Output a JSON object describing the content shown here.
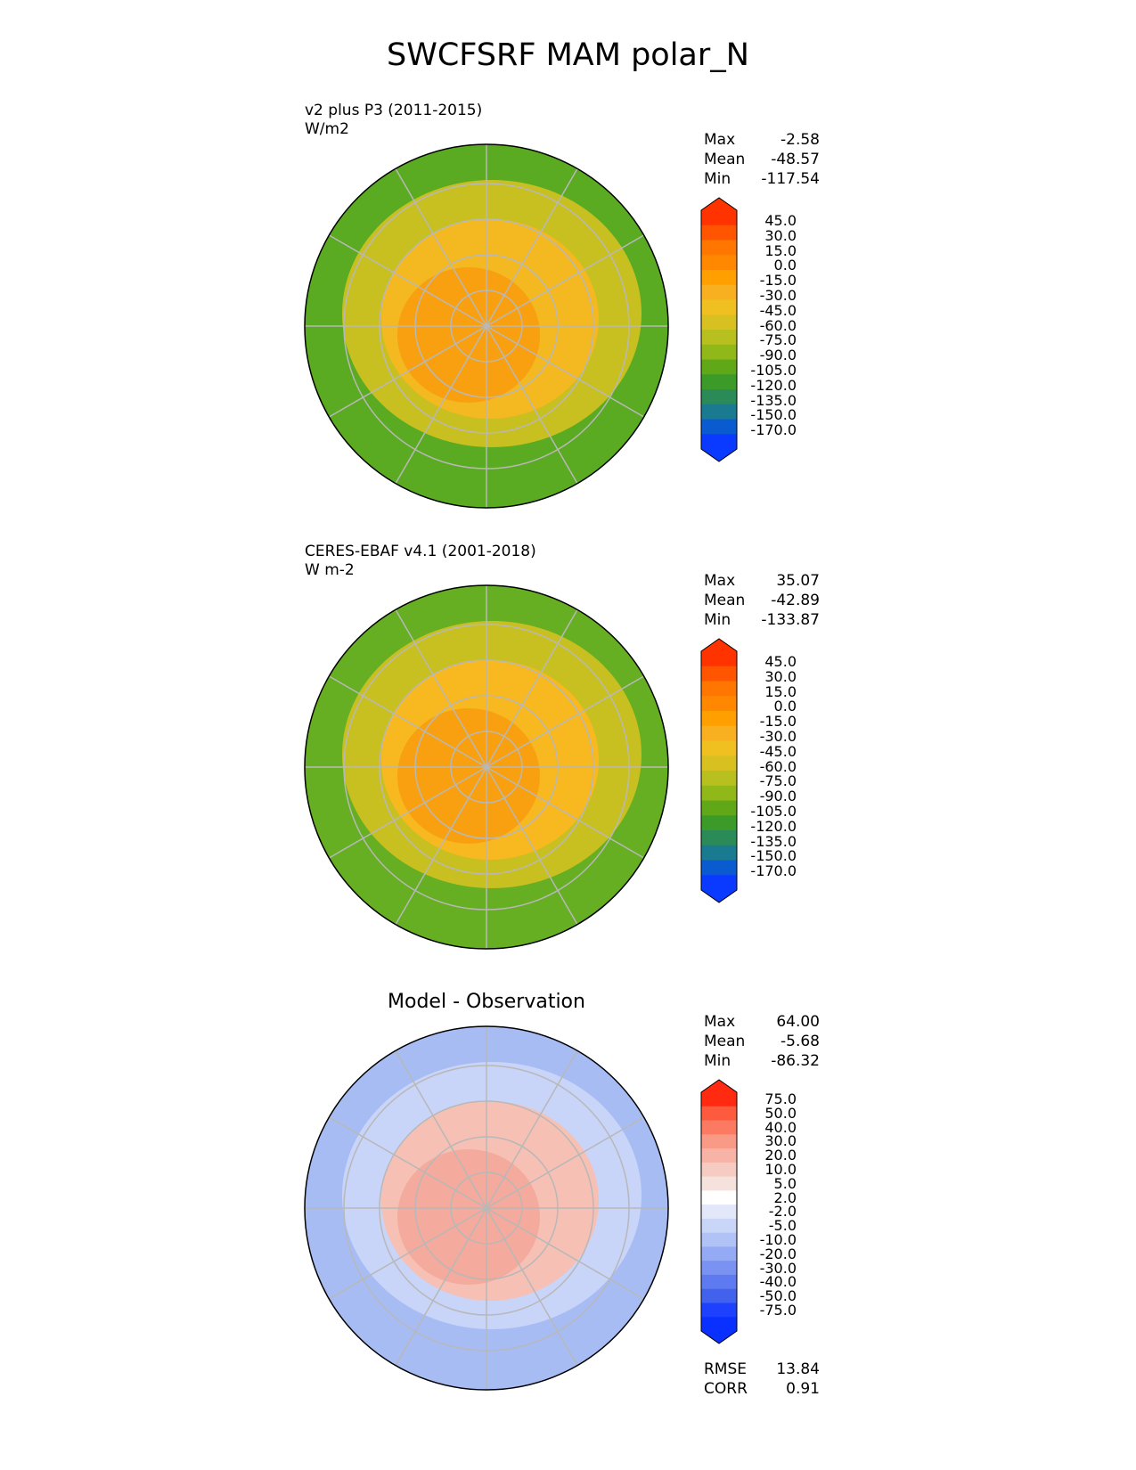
{
  "figure": {
    "title": "SWCFSRF MAM polar_N"
  },
  "panels": [
    {
      "title_line1": "v2 plus P3 (2011-2015)",
      "title_line2": "W/m2",
      "stats": {
        "max_label": "Max",
        "max": "-2.58",
        "mean_label": "Mean",
        "mean": "-48.57",
        "min_label": "Min",
        "min": "-117.54"
      },
      "colorbar": {
        "ticks": [
          "45.0",
          "30.0",
          "15.0",
          "0.0",
          "-15.0",
          "-30.0",
          "-45.0",
          "-60.0",
          "-75.0",
          "-90.0",
          "-105.0",
          "-120.0",
          "-135.0",
          "-150.0",
          "-170.0"
        ],
        "colors": [
          "#ff3300",
          "#ff5500",
          "#ff7700",
          "#ff8800",
          "#ffa000",
          "#f8b020",
          "#f0c020",
          "#d8c020",
          "#b8c020",
          "#90b818",
          "#60a818",
          "#3c9a28",
          "#2a8a58",
          "#1a7a90",
          "#0a5ad0",
          "#0a3aff"
        ]
      },
      "map_colors": {
        "outer": "#5aaa22",
        "mid": "#c8c020",
        "inner": "#f4b820",
        "pole": "#f8a010"
      }
    },
    {
      "title_line1": "CERES-EBAF v4.1 (2001-2018)",
      "title_line2": "W m-2",
      "stats": {
        "max_label": "Max",
        "max": "35.07",
        "mean_label": "Mean",
        "mean": "-42.89",
        "min_label": "Min",
        "min": "-133.87"
      },
      "colorbar": {
        "ticks": [
          "45.0",
          "30.0",
          "15.0",
          "0.0",
          "-15.0",
          "-30.0",
          "-45.0",
          "-60.0",
          "-75.0",
          "-90.0",
          "-105.0",
          "-120.0",
          "-135.0",
          "-150.0",
          "-170.0"
        ],
        "colors": [
          "#ff3300",
          "#ff5500",
          "#ff7700",
          "#ff8800",
          "#ffa000",
          "#f8b020",
          "#f0c020",
          "#d8c020",
          "#b8c020",
          "#90b818",
          "#60a818",
          "#3c9a28",
          "#2a8a58",
          "#1a7a90",
          "#0a5ad0",
          "#0a3aff"
        ]
      },
      "map_colors": {
        "outer": "#66ae22",
        "mid": "#c8c020",
        "inner": "#f8b820",
        "pole": "#f8a010"
      }
    },
    {
      "title_center": "Model - Observation",
      "stats": {
        "max_label": "Max",
        "max": "64.00",
        "mean_label": "Mean",
        "mean": "-5.68",
        "min_label": "Min",
        "min": "-86.32"
      },
      "colorbar": {
        "ticks": [
          "75.0",
          "50.0",
          "40.0",
          "30.0",
          "20.0",
          "10.0",
          "5.0",
          "2.0",
          "-2.0",
          "-5.0",
          "-10.0",
          "-20.0",
          "-30.0",
          "-40.0",
          "-50.0",
          "-75.0"
        ],
        "colors": [
          "#ff2a10",
          "#fe5a3e",
          "#fc7a62",
          "#f99a86",
          "#f7b4a6",
          "#f6ccc2",
          "#f6e2dc",
          "#ffffff",
          "#e2e8fa",
          "#cad6f8",
          "#b0c2f6",
          "#94aaf4",
          "#7a92f2",
          "#5e7af0",
          "#4262ee",
          "#1e40ff",
          "#0a30ff"
        ]
      },
      "map_colors": {
        "outer": "#a8bcf4",
        "mid": "#c8d4f8",
        "inner": "#f6c0b4",
        "pole": "#f4aa9c"
      },
      "metrics": {
        "rmse_label": "RMSE",
        "rmse": "13.84",
        "corr_label": "CORR",
        "corr": "0.91"
      }
    }
  ]
}
